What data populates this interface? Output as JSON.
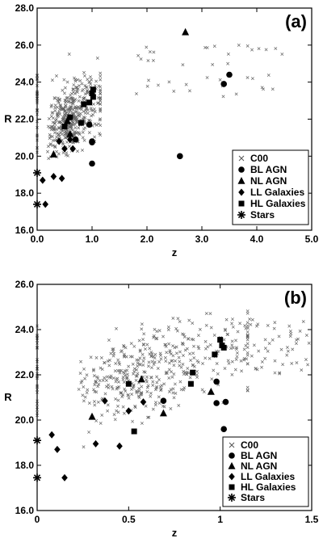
{
  "chart_data": [
    {
      "type": "scatter",
      "panel_label": "(a)",
      "xlabel": "z",
      "ylabel": "R",
      "xlim": [
        0,
        5
      ],
      "ylim": [
        16,
        28
      ],
      "xticks": [
        "0.0",
        "1.0",
        "2.0",
        "3.0",
        "4.0",
        "5.0"
      ],
      "xtick_values": [
        0,
        1,
        2,
        3,
        4,
        5
      ],
      "yticks": [
        "16.0",
        "18.0",
        "20.0",
        "22.0",
        "24.0",
        "26.0",
        "28.0"
      ],
      "ytick_values": [
        16,
        18,
        20,
        22,
        24,
        26,
        28
      ],
      "legend_placement": "bottom-right",
      "series": [
        {
          "name": "C00",
          "marker": "x",
          "cloud": true
        },
        {
          "name": "BL AGN",
          "marker": "circle",
          "x": [
            3.5,
            3.4,
            2.6,
            1.0,
            1.0,
            0.95,
            1.0,
            0.7
          ],
          "y": [
            24.4,
            23.9,
            20.0,
            19.6,
            20.8,
            21.7,
            20.75,
            20.9
          ]
        },
        {
          "name": "NL AGN",
          "marker": "triangle",
          "x": [
            2.7,
            0.55,
            0.6,
            0.3
          ],
          "y": [
            26.7,
            21.9,
            21.2,
            20.1
          ]
        },
        {
          "name": "LL Galaxies",
          "marker": "diamond",
          "x": [
            0.1,
            0.15,
            0.3,
            0.45,
            0.4,
            0.5,
            0.65,
            0.6
          ],
          "y": [
            18.7,
            17.4,
            18.9,
            18.8,
            20.8,
            20.4,
            20.4,
            20.9
          ]
        },
        {
          "name": "HL Galaxies",
          "marker": "square",
          "x": [
            1.02,
            1.0,
            0.85,
            0.95,
            0.8,
            0.5,
            0.6,
            1.02
          ],
          "y": [
            23.6,
            23.4,
            22.8,
            22.9,
            21.8,
            21.6,
            22.1,
            23.2
          ]
        },
        {
          "name": "Stars",
          "marker": "star",
          "x": [
            0.0,
            0.0
          ],
          "y": [
            19.1,
            17.4
          ]
        }
      ]
    },
    {
      "type": "scatter",
      "panel_label": "(b)",
      "xlabel": "z",
      "ylabel": "R",
      "xlim": [
        0,
        1.5
      ],
      "ylim": [
        16,
        26
      ],
      "xticks": [
        "0",
        "0.5",
        "1",
        "1.5"
      ],
      "xtick_values": [
        0,
        0.5,
        1,
        1.5
      ],
      "yticks": [
        "16.0",
        "18.0",
        "20.0",
        "22.0",
        "24.0",
        "26.0"
      ],
      "ytick_values": [
        16,
        18,
        20,
        22,
        24,
        26
      ],
      "legend_placement": "bottom-right",
      "series": [
        {
          "name": "C00",
          "marker": "x",
          "cloud": true
        },
        {
          "name": "BL AGN",
          "marker": "circle",
          "x": [
            0.69,
            0.98,
            1.03,
            1.02,
            0.98
          ],
          "y": [
            20.85,
            20.75,
            20.8,
            19.6,
            21.7
          ]
        },
        {
          "name": "NL AGN",
          "marker": "triangle",
          "x": [
            0.3,
            0.57,
            0.69,
            0.95
          ],
          "y": [
            20.15,
            21.8,
            20.3,
            21.25
          ]
        },
        {
          "name": "LL Galaxies",
          "marker": "diamond",
          "x": [
            0.08,
            0.11,
            0.15,
            0.32,
            0.37,
            0.45,
            0.5,
            0.58
          ],
          "y": [
            19.35,
            18.7,
            17.45,
            18.95,
            20.85,
            18.85,
            20.4,
            20.8
          ]
        },
        {
          "name": "HL Galaxies",
          "marker": "square",
          "x": [
            0.5,
            0.53,
            0.85,
            0.97,
            1.0,
            1.01,
            1.02,
            0.84
          ],
          "y": [
            21.6,
            19.5,
            22.1,
            22.9,
            23.55,
            23.3,
            23.2,
            21.6
          ]
        },
        {
          "name": "Stars",
          "marker": "star",
          "x": [
            0.0,
            0.0
          ],
          "y": [
            19.1,
            17.45
          ]
        }
      ]
    }
  ]
}
